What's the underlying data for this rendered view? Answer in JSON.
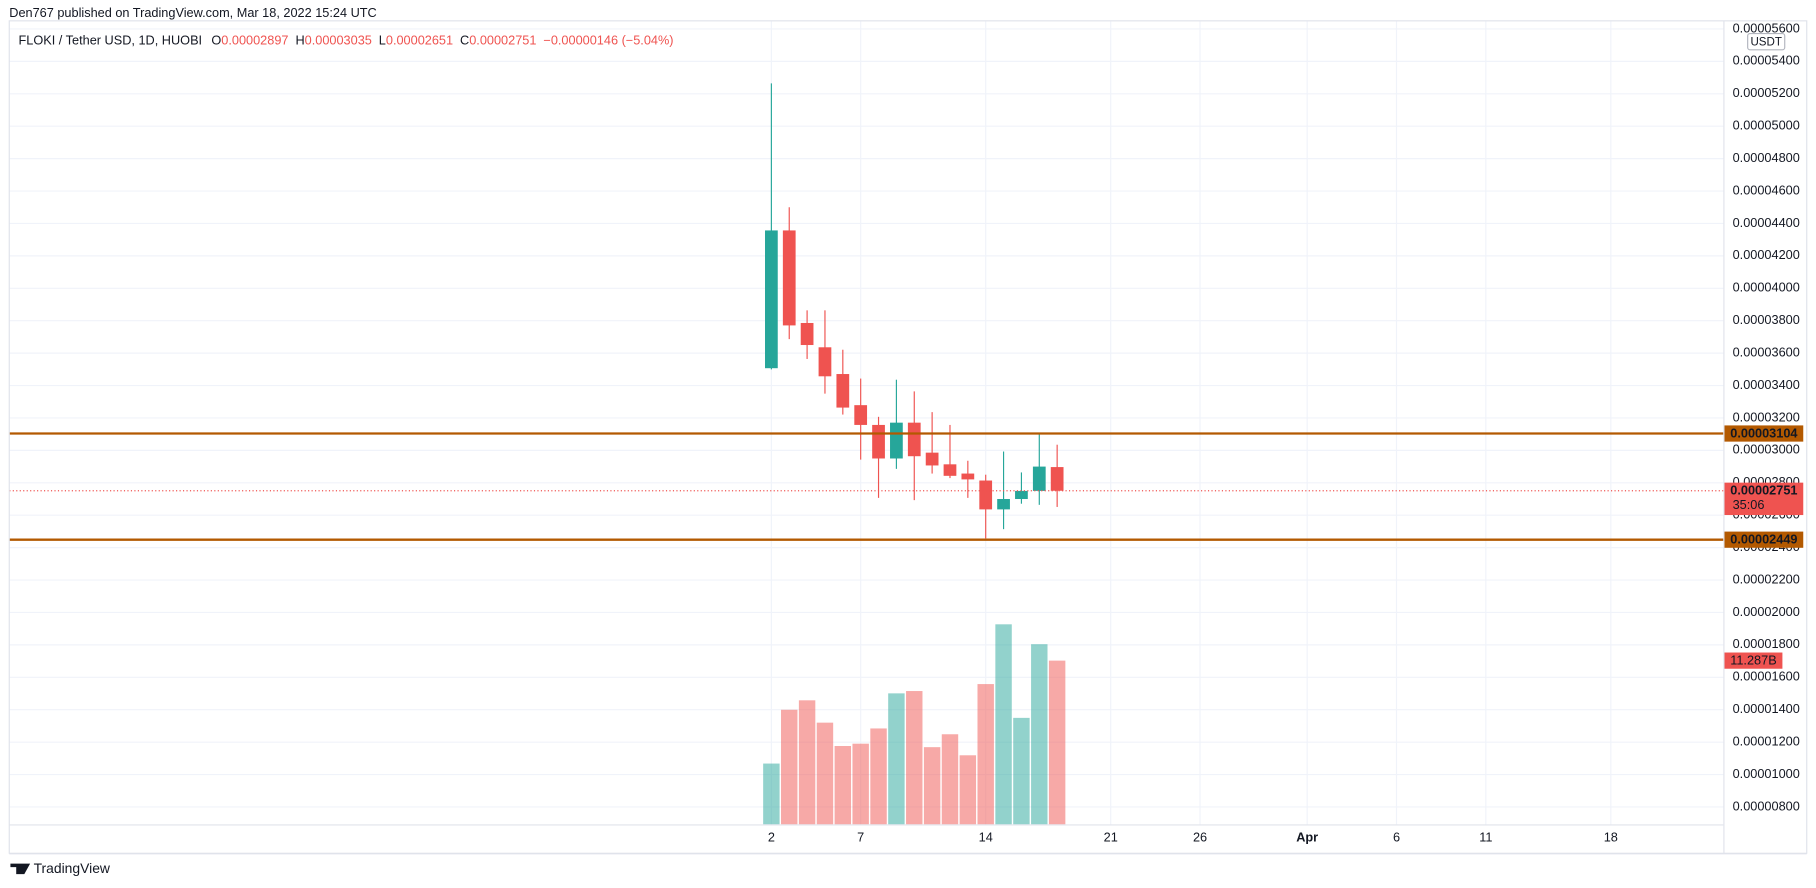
{
  "chart_data": {
    "type": "candlestick",
    "attribution": "Den767 published on TradingView.com, Mar 18, 2022 15:24 UTC",
    "title": "FLOKI / Tether USD, 1D, HUOBI",
    "legend": [
      {
        "key": "O",
        "value": "0.00002897"
      },
      {
        "key": "H",
        "value": "0.00003035"
      },
      {
        "key": "L",
        "value": "0.00002651"
      },
      {
        "key": "C",
        "value": "0.00002751"
      }
    ],
    "change": "−0.00000146 (−5.04%)",
    "currency": "USDT",
    "footer": "TradingView",
    "up_color": "#26a69a",
    "down_color": "#ef5350",
    "x": [
      2,
      3,
      4,
      5,
      6,
      7,
      8,
      9,
      10,
      11,
      12,
      13,
      14,
      15,
      16,
      17,
      18
    ],
    "open": [
      3.507e-05,
      4.357e-05,
      3.786e-05,
      3.636e-05,
      3.471e-05,
      3.279e-05,
      3.157e-05,
      2.95e-05,
      3.171e-05,
      2.986e-05,
      2.914e-05,
      2.857e-05,
      2.814e-05,
      2.636e-05,
      2.7e-05,
      2.75e-05,
      2.897e-05
    ],
    "high": [
      5.264e-05,
      4.5e-05,
      3.864e-05,
      3.864e-05,
      3.621e-05,
      3.443e-05,
      3.207e-05,
      3.436e-05,
      3.364e-05,
      3.236e-05,
      3.157e-05,
      2.936e-05,
      2.85e-05,
      2.993e-05,
      2.864e-05,
      3.107e-05,
      3.035e-05
    ],
    "low": [
      3.5e-05,
      3.686e-05,
      3.564e-05,
      3.35e-05,
      3.221e-05,
      2.943e-05,
      2.707e-05,
      2.886e-05,
      2.693e-05,
      2.857e-05,
      2.829e-05,
      2.707e-05,
      2.457e-05,
      2.514e-05,
      2.671e-05,
      2.664e-05,
      2.651e-05
    ],
    "close": [
      4.357e-05,
      3.771e-05,
      3.65e-05,
      3.457e-05,
      3.264e-05,
      3.157e-05,
      2.95e-05,
      3.171e-05,
      2.964e-05,
      2.907e-05,
      2.843e-05,
      2.821e-05,
      2.636e-05,
      2.7e-05,
      2.75e-05,
      2.9e-05,
      2.751e-05
    ],
    "volume": [
      4190000000,
      7900000000,
      8550000000,
      7010000000,
      5400000000,
      5560000000,
      6610000000,
      9030000000,
      9190000000,
      5320000000,
      6210000000,
      4760000000,
      9670000000,
      13790000000,
      7340000000,
      12420000000,
      11287000000
    ],
    "volume_labels": [
      null,
      null,
      null,
      null,
      null,
      null,
      null,
      null,
      null,
      null,
      null,
      null,
      null,
      null,
      null,
      null,
      "11.287B"
    ],
    "volume_ylim": [
      0,
      55400000000
    ],
    "levels": [
      {
        "value": 3.104e-05,
        "label": "0.00003104",
        "color": "#b35900"
      },
      {
        "value": 2.449e-05,
        "label": "0.00002449",
        "color": "#b35900"
      }
    ],
    "last_price": {
      "value": 2.751e-05,
      "label": "0.00002751",
      "countdown": "35:06"
    },
    "xlim": [
      -40.67,
      55.3
    ],
    "xticks": [
      2,
      7,
      14,
      21,
      26,
      {
        "value": 32,
        "label": "Apr"
      },
      {
        "value": 37,
        "label": "6"
      },
      {
        "value": 42,
        "label": "11"
      },
      {
        "value": 49,
        "label": "18"
      }
    ],
    "ylim": [
      6.93e-06,
      5.65e-05
    ],
    "yticks": [
      {
        "value": 8e-06,
        "label": "0.00000800"
      },
      {
        "value": 1e-05,
        "label": "0.00001000"
      },
      {
        "value": 1.2e-05,
        "label": "0.00001200"
      },
      {
        "value": 1.4e-05,
        "label": "0.00001400"
      },
      {
        "value": 1.6e-05,
        "label": "0.00001600"
      },
      {
        "value": 1.8e-05,
        "label": "0.00001800"
      },
      {
        "value": 2e-05,
        "label": "0.00002000"
      },
      {
        "value": 2.2e-05,
        "label": "0.00002200"
      },
      {
        "value": 2.4e-05,
        "label": "0.00002400"
      },
      {
        "value": 2.6e-05,
        "label": "0.00002600"
      },
      {
        "value": 2.8e-05,
        "label": "0.00002800"
      },
      {
        "value": 3e-05,
        "label": "0.00003000"
      },
      {
        "value": 3.2e-05,
        "label": "0.00003200"
      },
      {
        "value": 3.4e-05,
        "label": "0.00003400"
      },
      {
        "value": 3.6e-05,
        "label": "0.00003600"
      },
      {
        "value": 3.8e-05,
        "label": "0.00003800"
      },
      {
        "value": 4e-05,
        "label": "0.00004000"
      },
      {
        "value": 4.2e-05,
        "label": "0.00004200"
      },
      {
        "value": 4.4e-05,
        "label": "0.00004400"
      },
      {
        "value": 4.6e-05,
        "label": "0.00004600"
      },
      {
        "value": 4.8e-05,
        "label": "0.00004800"
      },
      {
        "value": 5e-05,
        "label": "0.00005000"
      },
      {
        "value": 5.2e-05,
        "label": "0.00005200"
      },
      {
        "value": 5.4e-05,
        "label": "0.00005400"
      },
      {
        "value": 5.6e-05,
        "label": "0.00005600"
      }
    ],
    "grid": true
  }
}
